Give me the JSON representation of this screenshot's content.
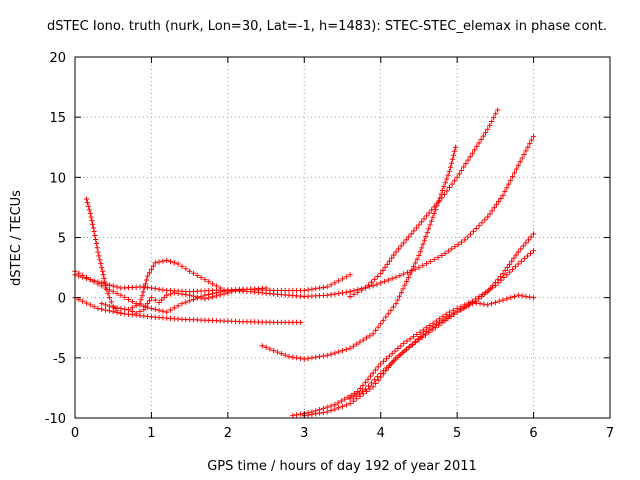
{
  "chart_data": {
    "type": "scatter",
    "title": "dSTEC Iono. truth (nurk, Lon=30, Lat=-1, h=1483): STEC-STEC_elemax in phase cont.",
    "xlabel": "GPS time / hours of day 192 of year 2011",
    "ylabel": "dSTEC  / TECUs",
    "xlim": [
      0,
      7
    ],
    "ylim": [
      -10,
      20
    ],
    "xticks": [
      "0",
      "1",
      "2",
      "3",
      "4",
      "5",
      "6",
      "7"
    ],
    "yticks": [
      "-10",
      "-5",
      "0",
      "5",
      "10",
      "15",
      "20"
    ],
    "grid": true,
    "marker": "+",
    "color": "#ff0000",
    "series": [
      {
        "x": [
          0.0,
          0.3,
          0.6,
          1.0,
          1.4,
          1.8,
          2.2,
          2.6,
          2.95
        ],
        "y": [
          0.0,
          -0.9,
          -1.3,
          -1.6,
          -1.8,
          -1.9,
          -2.0,
          -2.05,
          -2.05
        ]
      },
      {
        "x": [
          0.0,
          0.3,
          0.6,
          0.9,
          1.2,
          1.5,
          1.8,
          2.2,
          2.6,
          3.0,
          3.3,
          3.6
        ],
        "y": [
          1.9,
          1.3,
          0.8,
          0.9,
          0.6,
          0.5,
          0.6,
          0.7,
          0.6,
          0.6,
          0.9,
          1.9
        ]
      },
      {
        "x": [
          0.0,
          0.2,
          0.4,
          0.6,
          0.8,
          1.0,
          1.2,
          1.4,
          1.7,
          2.0,
          2.3,
          2.6,
          3.0,
          3.3,
          3.6
        ],
        "y": [
          2.2,
          1.5,
          0.8,
          0.2,
          -0.5,
          -0.9,
          -1.2,
          -0.5,
          0.2,
          0.6,
          0.5,
          0.3,
          0.1,
          0.2,
          0.5
        ]
      },
      {
        "x": [
          0.15,
          0.2,
          0.25,
          0.28,
          0.3,
          0.35,
          0.4,
          0.45,
          0.5,
          0.55,
          0.6
        ],
        "y": [
          8.2,
          7.0,
          5.5,
          4.5,
          3.8,
          2.5,
          1.0,
          0.0,
          -0.7,
          -1.1,
          -1.3
        ]
      },
      {
        "x": [
          0.35,
          0.5,
          0.7,
          0.85,
          0.95,
          1.05,
          1.2,
          1.35,
          1.5,
          1.7,
          1.9,
          2.0,
          2.1,
          2.3,
          2.5
        ],
        "y": [
          -0.5,
          -0.8,
          -1.0,
          -0.5,
          1.8,
          2.9,
          3.1,
          2.8,
          2.2,
          1.5,
          0.8,
          0.4,
          0.6,
          0.7,
          0.8
        ]
      },
      {
        "x": [
          0.7,
          0.8,
          0.9,
          1.0,
          1.1,
          1.2,
          1.3,
          1.5,
          1.7,
          2.0
        ],
        "y": [
          -1.0,
          -1.3,
          -1.0,
          0.0,
          -0.4,
          0.2,
          0.4,
          0.2,
          -0.1,
          0.4
        ]
      },
      {
        "x": [
          2.45,
          2.6,
          2.8,
          3.0,
          3.3,
          3.6,
          3.9,
          4.2,
          4.5,
          4.7,
          4.9,
          4.98
        ],
        "y": [
          -4.0,
          -4.4,
          -4.9,
          -5.1,
          -4.8,
          -4.2,
          -3.0,
          -0.5,
          3.5,
          7.0,
          10.5,
          12.5
        ]
      },
      {
        "x": [
          3.6,
          3.8,
          4.0,
          4.2,
          4.4,
          4.6,
          4.8,
          5.0,
          5.2,
          5.4,
          5.53
        ],
        "y": [
          0.1,
          0.8,
          2.0,
          3.8,
          5.3,
          6.8,
          8.3,
          10.0,
          12.0,
          14.0,
          15.6
        ]
      },
      {
        "x": [
          3.6,
          3.9,
          4.2,
          4.5,
          4.8,
          5.1,
          5.4,
          5.6,
          5.8,
          6.0
        ],
        "y": [
          0.5,
          1.0,
          1.7,
          2.5,
          3.5,
          4.8,
          6.7,
          8.5,
          11.0,
          13.4
        ]
      },
      {
        "x": [
          2.85,
          3.1,
          3.4,
          3.7,
          4.0,
          4.3,
          4.6,
          4.9,
          5.2,
          5.5,
          5.8,
          6.0
        ],
        "y": [
          -9.8,
          -9.5,
          -8.9,
          -7.8,
          -5.5,
          -3.8,
          -2.5,
          -1.2,
          -0.3,
          1.0,
          2.8,
          3.9
        ]
      },
      {
        "x": [
          3.6,
          3.8,
          4.0,
          4.3,
          4.6,
          4.9,
          5.2,
          5.4,
          5.6,
          5.8,
          6.0
        ],
        "y": [
          -8.4,
          -7.6,
          -6.3,
          -4.5,
          -2.8,
          -1.5,
          -0.5,
          0.5,
          2.0,
          3.8,
          5.3
        ]
      },
      {
        "x": [
          3.0,
          3.3,
          3.6,
          3.9,
          4.2,
          4.5,
          4.8,
          5.0,
          5.2,
          5.4,
          5.6,
          5.8,
          6.0
        ],
        "y": [
          -9.8,
          -9.5,
          -8.8,
          -7.4,
          -5.0,
          -3.5,
          -2.1,
          -1.2,
          -0.4,
          -0.6,
          -0.2,
          0.2,
          0.0
        ]
      }
    ]
  }
}
